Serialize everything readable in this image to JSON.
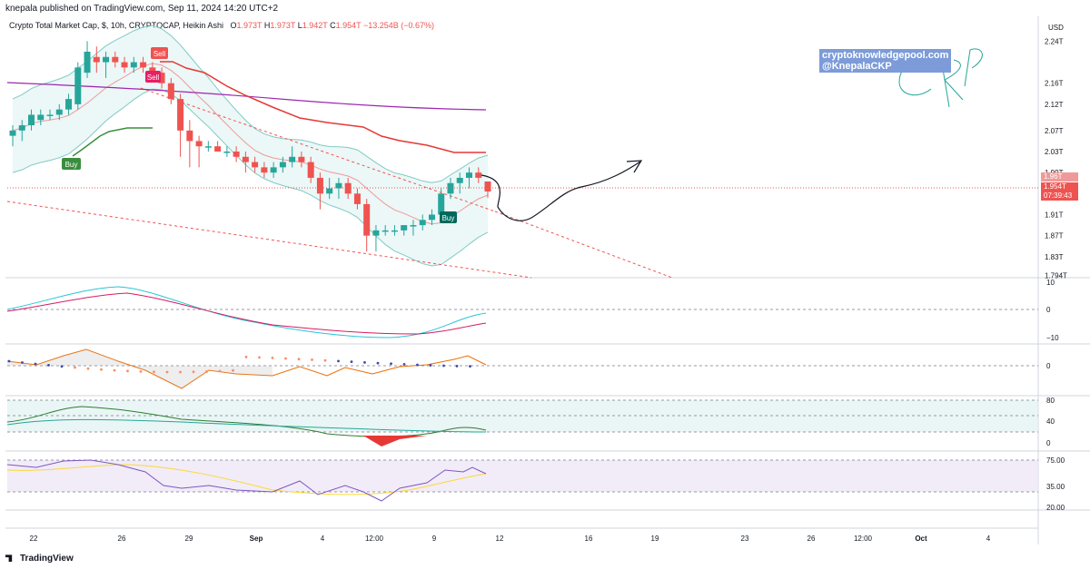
{
  "header": {
    "published": "knepala published on TradingView.com, Sep 11, 2024 14:20 UTC+2"
  },
  "legend": {
    "symbol": "Crypto Total Market Cap, $, 10h, CRYPTOCAP, Heikin Ashi",
    "o_label": "O",
    "o_value": "1.973T",
    "h_label": "H",
    "h_value": "1.973T",
    "l_label": "L",
    "l_value": "1.942T",
    "c_label": "C",
    "c_value": "1.954T",
    "change": "−13.254B (−0.67%)"
  },
  "watermark": {
    "line1": "cryptoknowledgepool.com",
    "line2": "@KnepalaCKP"
  },
  "price_scale": {
    "currency": "USD",
    "ticks": [
      "2.24T",
      "2.16T",
      "2.12T",
      "2.07T",
      "2.03T",
      "1.99T",
      "1.91T",
      "1.87T",
      "1.83T",
      "1.794T"
    ],
    "badge_top": "1.96T",
    "badge_price": "1.954T",
    "badge_time": "07:39:43"
  },
  "time_axis": {
    "ticks": [
      "22",
      "26",
      "29",
      "Sep",
      "4",
      "12:00",
      "9",
      "12",
      "16",
      "19",
      "23",
      "26",
      "12:00",
      "Oct",
      "4"
    ]
  },
  "signals": {
    "sell1": "Sell",
    "sell2": "Sell",
    "buy1": "Buy",
    "buy2": "Buy"
  },
  "panes": {
    "macd_ticks": [
      "10",
      "0",
      "−10"
    ],
    "osc_ticks": [
      "0"
    ],
    "adx_ticks": [
      "80",
      "40",
      "0"
    ],
    "rsi_ticks": [
      "75.00",
      "35.00",
      "20.00"
    ]
  },
  "footer": {
    "brand": "TradingView"
  },
  "colors": {
    "bull": "#26a69a",
    "bear": "#ef5350",
    "ma_purple": "#9c27b0",
    "supertrend_red": "#e53935",
    "supertrend_green": "#388e3c",
    "band_fill": "#e0f2f1"
  },
  "chart_data": [
    {
      "type": "candlestick",
      "title": "Crypto Total Market Cap, $, 10h, CRYPTOCAP, Heikin Ashi",
      "ylabel": "USD",
      "ylim": [
        1.79,
        2.27
      ],
      "candles": [
        {
          "o": 2.06,
          "h": 2.08,
          "l": 2.04,
          "c": 2.07
        },
        {
          "o": 2.07,
          "h": 2.09,
          "l": 2.05,
          "c": 2.08
        },
        {
          "o": 2.08,
          "h": 2.11,
          "l": 2.07,
          "c": 2.1
        },
        {
          "o": 2.09,
          "h": 2.11,
          "l": 2.08,
          "c": 2.1
        },
        {
          "o": 2.1,
          "h": 2.11,
          "l": 2.09,
          "c": 2.1
        },
        {
          "o": 2.1,
          "h": 2.12,
          "l": 2.09,
          "c": 2.11
        },
        {
          "o": 2.11,
          "h": 2.14,
          "l": 2.1,
          "c": 2.13
        },
        {
          "o": 2.12,
          "h": 2.2,
          "l": 2.11,
          "c": 2.19
        },
        {
          "o": 2.18,
          "h": 2.24,
          "l": 2.17,
          "c": 2.22
        },
        {
          "o": 2.21,
          "h": 2.23,
          "l": 2.18,
          "c": 2.2
        },
        {
          "o": 2.2,
          "h": 2.22,
          "l": 2.17,
          "c": 2.21
        },
        {
          "o": 2.21,
          "h": 2.22,
          "l": 2.19,
          "c": 2.2
        },
        {
          "o": 2.2,
          "h": 2.21,
          "l": 2.18,
          "c": 2.19
        },
        {
          "o": 2.19,
          "h": 2.21,
          "l": 2.18,
          "c": 2.2
        },
        {
          "o": 2.2,
          "h": 2.21,
          "l": 2.18,
          "c": 2.19
        },
        {
          "o": 2.19,
          "h": 2.2,
          "l": 2.17,
          "c": 2.18
        },
        {
          "o": 2.18,
          "h": 2.19,
          "l": 2.15,
          "c": 2.16
        },
        {
          "o": 2.16,
          "h": 2.17,
          "l": 2.12,
          "c": 2.13
        },
        {
          "o": 2.13,
          "h": 2.14,
          "l": 2.02,
          "c": 2.07
        },
        {
          "o": 2.07,
          "h": 2.09,
          "l": 2.0,
          "c": 2.05
        },
        {
          "o": 2.05,
          "h": 2.06,
          "l": 2.0,
          "c": 2.04
        },
        {
          "o": 2.04,
          "h": 2.05,
          "l": 2.03,
          "c": 2.04
        },
        {
          "o": 2.04,
          "h": 2.05,
          "l": 2.03,
          "c": 2.03
        },
        {
          "o": 2.03,
          "h": 2.04,
          "l": 2.02,
          "c": 2.03
        },
        {
          "o": 2.03,
          "h": 2.04,
          "l": 2.01,
          "c": 2.02
        },
        {
          "o": 2.02,
          "h": 2.03,
          "l": 1.99,
          "c": 2.01
        },
        {
          "o": 2.01,
          "h": 2.02,
          "l": 1.99,
          "c": 2.0
        },
        {
          "o": 2.0,
          "h": 2.01,
          "l": 1.98,
          "c": 1.99
        },
        {
          "o": 1.99,
          "h": 2.01,
          "l": 1.98,
          "c": 2.0
        },
        {
          "o": 2.0,
          "h": 2.02,
          "l": 1.99,
          "c": 2.01
        },
        {
          "o": 2.01,
          "h": 2.04,
          "l": 2.0,
          "c": 2.02
        },
        {
          "o": 2.02,
          "h": 2.03,
          "l": 2.0,
          "c": 2.01
        },
        {
          "o": 2.01,
          "h": 2.02,
          "l": 1.97,
          "c": 1.98
        },
        {
          "o": 1.98,
          "h": 1.99,
          "l": 1.92,
          "c": 1.95
        },
        {
          "o": 1.95,
          "h": 1.98,
          "l": 1.94,
          "c": 1.96
        },
        {
          "o": 1.96,
          "h": 1.98,
          "l": 1.94,
          "c": 1.97
        },
        {
          "o": 1.97,
          "h": 1.98,
          "l": 1.94,
          "c": 1.95
        },
        {
          "o": 1.95,
          "h": 1.96,
          "l": 1.92,
          "c": 1.93
        },
        {
          "o": 1.93,
          "h": 1.94,
          "l": 1.84,
          "c": 1.87
        },
        {
          "o": 1.87,
          "h": 1.89,
          "l": 1.84,
          "c": 1.88
        },
        {
          "o": 1.88,
          "h": 1.89,
          "l": 1.87,
          "c": 1.88
        },
        {
          "o": 1.88,
          "h": 1.89,
          "l": 1.87,
          "c": 1.88
        },
        {
          "o": 1.88,
          "h": 1.89,
          "l": 1.87,
          "c": 1.89
        },
        {
          "o": 1.89,
          "h": 1.9,
          "l": 1.87,
          "c": 1.89
        },
        {
          "o": 1.89,
          "h": 1.91,
          "l": 1.88,
          "c": 1.9
        },
        {
          "o": 1.9,
          "h": 1.92,
          "l": 1.89,
          "c": 1.91
        },
        {
          "o": 1.91,
          "h": 1.96,
          "l": 1.9,
          "c": 1.95
        },
        {
          "o": 1.95,
          "h": 1.98,
          "l": 1.94,
          "c": 1.97
        },
        {
          "o": 1.97,
          "h": 1.99,
          "l": 1.95,
          "c": 1.98
        },
        {
          "o": 1.98,
          "h": 2.0,
          "l": 1.96,
          "c": 1.99
        },
        {
          "o": 1.99,
          "h": 2.0,
          "l": 1.97,
          "c": 1.98
        },
        {
          "o": 1.973,
          "h": 1.973,
          "l": 1.942,
          "c": 1.954
        }
      ]
    },
    {
      "type": "line",
      "title": "",
      "ylim": [
        -12,
        12
      ],
      "ticks": [
        10,
        0,
        -10
      ]
    },
    {
      "type": "line",
      "title": "",
      "ticks": [
        0
      ]
    },
    {
      "type": "line",
      "title": "",
      "ylim": [
        0,
        90
      ],
      "ticks": [
        80,
        40,
        0
      ]
    },
    {
      "type": "line",
      "title": "",
      "ylim": [
        10,
        90
      ],
      "ticks": [
        75,
        35,
        20
      ]
    }
  ]
}
